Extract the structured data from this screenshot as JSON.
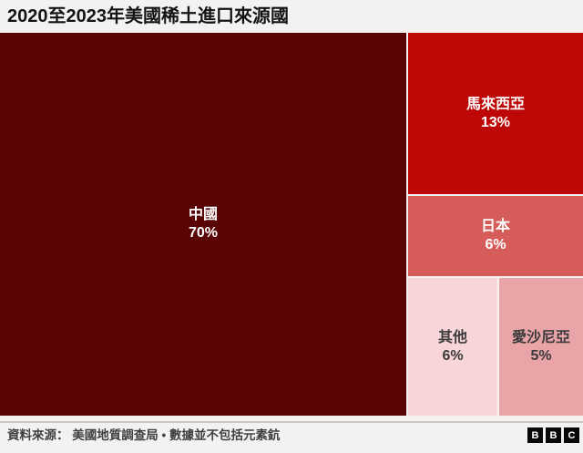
{
  "title": "2020至2023年美國稀土進口來源國",
  "chart_data": {
    "type": "treemap",
    "title": "2020至2023年美國稀土進口來源國",
    "unit": "%",
    "items": [
      {
        "name": "中國",
        "value": 70,
        "value_label": "70%",
        "color": "#5a0505",
        "text_color": "#ffffff"
      },
      {
        "name": "馬來西亞",
        "value": 13,
        "value_label": "13%",
        "color": "#be0707",
        "text_color": "#ffffff"
      },
      {
        "name": "日本",
        "value": 6,
        "value_label": "6%",
        "color": "#d65c59",
        "text_color": "#ffffff"
      },
      {
        "name": "其他",
        "value": 6,
        "value_label": "6%",
        "color": "#f8d5d9",
        "text_color": "#3b3b3b"
      },
      {
        "name": "愛沙尼亞",
        "value": 5,
        "value_label": "5%",
        "color": "#e9a4a8",
        "text_color": "#3b3b3b"
      }
    ],
    "source": "資料來源： 美國地質調查局 • 數據並不包括元素鈧",
    "legend": "none",
    "notes": "labels shown inside tiles as name + percent"
  },
  "footer": {
    "source": "資料來源： 美國地質調查局 • 數據並不包括元素鈧",
    "logo_letters": [
      "B",
      "B",
      "C"
    ]
  }
}
